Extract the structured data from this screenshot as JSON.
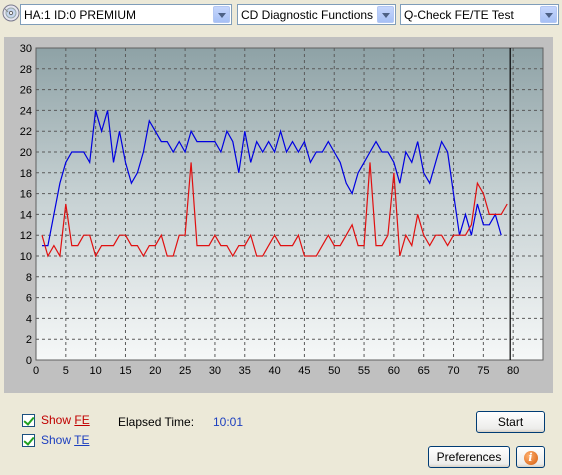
{
  "toolbar": {
    "device_icon": "cd-drive-icon",
    "device_value": "HA:1 ID:0  PREMIUM",
    "function_value": "CD Diagnostic Functions",
    "test_value": "Q-Check FE/TE Test"
  },
  "controls": {
    "show_fe": {
      "prefix": "Show ",
      "key": "FE",
      "checked": true
    },
    "show_te": {
      "prefix": "Show ",
      "key": "TE",
      "checked": true
    },
    "elapsed_label": "Elapsed Time:",
    "elapsed_value": "10:01",
    "start_label": "Start",
    "preferences_label": "Preferences",
    "info_icon": "i"
  },
  "colors": {
    "fe": "#e01010",
    "te": "#0000e0",
    "marker": "#000000"
  },
  "chart_data": {
    "type": "line",
    "xlim": [
      0,
      85
    ],
    "ylim": [
      0,
      30
    ],
    "x_ticks": [
      0,
      5,
      10,
      15,
      20,
      25,
      30,
      35,
      40,
      45,
      50,
      55,
      60,
      65,
      70,
      75,
      80
    ],
    "y_ticks": [
      0,
      2,
      4,
      6,
      8,
      10,
      12,
      14,
      16,
      18,
      20,
      22,
      24,
      26,
      28,
      30
    ],
    "x_tick_labels": [
      "0",
      "5",
      "10",
      "15",
      "20",
      "25",
      "30",
      "35",
      "40",
      "45",
      "50",
      "55",
      "60",
      "65",
      "70",
      "75",
      "80"
    ],
    "y_tick_labels": [
      "0",
      "2",
      "4",
      "6",
      "8",
      "10",
      "12",
      "14",
      "16",
      "18",
      "20",
      "22",
      "24",
      "26",
      "28",
      "30"
    ],
    "grid": true,
    "marker_x": 79.5,
    "series": [
      {
        "key": "te",
        "values": [
          [
            1,
            11
          ],
          [
            2,
            11
          ],
          [
            3,
            14
          ],
          [
            4,
            17
          ],
          [
            5,
            19
          ],
          [
            6,
            20
          ],
          [
            7,
            20
          ],
          [
            8,
            20
          ],
          [
            9,
            19
          ],
          [
            10,
            24
          ],
          [
            11,
            22
          ],
          [
            12,
            24
          ],
          [
            13,
            19
          ],
          [
            14,
            22
          ],
          [
            15,
            19
          ],
          [
            16,
            17
          ],
          [
            17,
            18
          ],
          [
            18,
            20
          ],
          [
            19,
            23
          ],
          [
            20,
            22
          ],
          [
            21,
            21
          ],
          [
            22,
            21
          ],
          [
            23,
            20
          ],
          [
            24,
            21
          ],
          [
            25,
            20
          ],
          [
            26,
            22
          ],
          [
            27,
            21
          ],
          [
            28,
            21
          ],
          [
            29,
            21
          ],
          [
            30,
            21
          ],
          [
            31,
            20
          ],
          [
            32,
            22
          ],
          [
            33,
            21
          ],
          [
            34,
            18
          ],
          [
            35,
            22
          ],
          [
            36,
            19
          ],
          [
            37,
            21
          ],
          [
            38,
            20
          ],
          [
            39,
            21
          ],
          [
            40,
            20
          ],
          [
            41,
            22
          ],
          [
            42,
            20
          ],
          [
            43,
            21
          ],
          [
            44,
            20
          ],
          [
            45,
            21
          ],
          [
            46,
            19
          ],
          [
            47,
            20
          ],
          [
            48,
            20
          ],
          [
            49,
            21
          ],
          [
            50,
            20
          ],
          [
            51,
            19
          ],
          [
            52,
            17
          ],
          [
            53,
            16
          ],
          [
            54,
            18
          ],
          [
            55,
            19
          ],
          [
            56,
            20
          ],
          [
            57,
            21
          ],
          [
            58,
            20
          ],
          [
            59,
            20
          ],
          [
            60,
            19
          ],
          [
            61,
            17
          ],
          [
            62,
            20
          ],
          [
            63,
            19
          ],
          [
            64,
            21
          ],
          [
            65,
            18
          ],
          [
            66,
            17
          ],
          [
            67,
            19
          ],
          [
            68,
            21
          ],
          [
            69,
            20
          ],
          [
            70,
            16
          ],
          [
            71,
            12
          ],
          [
            72,
            14
          ],
          [
            73,
            12
          ],
          [
            74,
            15
          ],
          [
            75,
            13
          ],
          [
            76,
            13
          ],
          [
            77,
            14
          ],
          [
            78,
            12
          ]
        ]
      },
      {
        "key": "fe",
        "values": [
          [
            1,
            12
          ],
          [
            2,
            10
          ],
          [
            3,
            11
          ],
          [
            4,
            10
          ],
          [
            5,
            15
          ],
          [
            6,
            11
          ],
          [
            7,
            11
          ],
          [
            8,
            12
          ],
          [
            9,
            12
          ],
          [
            10,
            10
          ],
          [
            11,
            11
          ],
          [
            12,
            11
          ],
          [
            13,
            11
          ],
          [
            14,
            12
          ],
          [
            15,
            12
          ],
          [
            16,
            11
          ],
          [
            17,
            11
          ],
          [
            18,
            10
          ],
          [
            19,
            11
          ],
          [
            20,
            11
          ],
          [
            21,
            12
          ],
          [
            22,
            10
          ],
          [
            23,
            10
          ],
          [
            24,
            12
          ],
          [
            25,
            12
          ],
          [
            26,
            19
          ],
          [
            27,
            11
          ],
          [
            28,
            11
          ],
          [
            29,
            11
          ],
          [
            30,
            12
          ],
          [
            31,
            11
          ],
          [
            32,
            11
          ],
          [
            33,
            10
          ],
          [
            34,
            11
          ],
          [
            35,
            11
          ],
          [
            36,
            12
          ],
          [
            37,
            10
          ],
          [
            38,
            10
          ],
          [
            39,
            11
          ],
          [
            40,
            12
          ],
          [
            41,
            11
          ],
          [
            42,
            11
          ],
          [
            43,
            11
          ],
          [
            44,
            12
          ],
          [
            45,
            10
          ],
          [
            46,
            10
          ],
          [
            47,
            10
          ],
          [
            48,
            11
          ],
          [
            49,
            12
          ],
          [
            50,
            11
          ],
          [
            51,
            11
          ],
          [
            52,
            12
          ],
          [
            53,
            13
          ],
          [
            54,
            11
          ],
          [
            55,
            11
          ],
          [
            56,
            19
          ],
          [
            57,
            11
          ],
          [
            58,
            11
          ],
          [
            59,
            12
          ],
          [
            60,
            18
          ],
          [
            61,
            10
          ],
          [
            62,
            12
          ],
          [
            63,
            11
          ],
          [
            64,
            14
          ],
          [
            65,
            12
          ],
          [
            66,
            11
          ],
          [
            67,
            12
          ],
          [
            68,
            12
          ],
          [
            69,
            11
          ],
          [
            70,
            12
          ],
          [
            71,
            12
          ],
          [
            72,
            12
          ],
          [
            73,
            13
          ],
          [
            74,
            17
          ],
          [
            75,
            16
          ],
          [
            76,
            14
          ],
          [
            77,
            14
          ],
          [
            78,
            14
          ],
          [
            79,
            15
          ]
        ]
      }
    ]
  }
}
